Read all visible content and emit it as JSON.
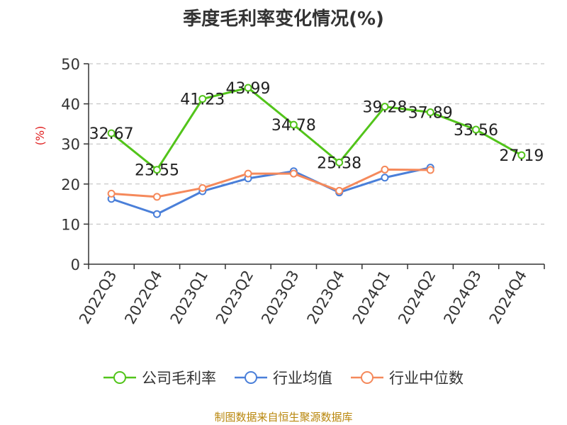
{
  "chart_data": {
    "type": "line",
    "title": "季度毛利率变化情况(%)",
    "ylabel": "(%)",
    "xlabel": "",
    "categories": [
      "2022Q3",
      "2022Q4",
      "2023Q1",
      "2023Q2",
      "2023Q3",
      "2023Q4",
      "2024Q1",
      "2024Q2",
      "2024Q3",
      "2024Q4"
    ],
    "ylim": [
      0,
      50
    ],
    "yticks": [
      0,
      10,
      20,
      30,
      40,
      50
    ],
    "grid": true,
    "legend_position": "bottom",
    "series": [
      {
        "name": "公司毛利率",
        "color": "#52c41a",
        "values": [
          32.67,
          23.55,
          41.23,
          43.99,
          34.78,
          25.38,
          39.28,
          37.89,
          33.56,
          27.19
        ],
        "labels": [
          "32.67",
          "23.55",
          "41.23",
          "43.99",
          "34.78",
          "25.38",
          "39.28",
          "37.89",
          "33.56",
          "27.19"
        ]
      },
      {
        "name": "行业均值",
        "color": "#4a7fd9",
        "values": [
          16.3,
          12.5,
          18.2,
          21.4,
          23.2,
          17.9,
          21.6,
          24.1,
          null,
          null
        ]
      },
      {
        "name": "行业中位数",
        "color": "#f5895b",
        "values": [
          17.6,
          16.8,
          19.0,
          22.6,
          22.6,
          18.3,
          23.6,
          23.5,
          null,
          null
        ]
      }
    ],
    "source": "制图数据来自恒生聚源数据库"
  }
}
